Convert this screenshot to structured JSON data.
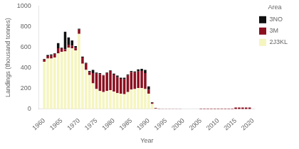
{
  "chart_data": {
    "type": "bar",
    "stacked": true,
    "xlabel": "Year",
    "ylabel": "Landings (thousand tonnes)",
    "legend_title": "Area",
    "x": [
      1960,
      1961,
      1962,
      1963,
      1964,
      1965,
      1966,
      1967,
      1968,
      1969,
      1970,
      1971,
      1972,
      1973,
      1974,
      1975,
      1976,
      1977,
      1978,
      1979,
      1980,
      1981,
      1982,
      1983,
      1984,
      1985,
      1986,
      1987,
      1988,
      1989,
      1990,
      1991,
      1992,
      1993,
      1994,
      1995,
      1996,
      1997,
      1998,
      1999,
      2000,
      2001,
      2002,
      2003,
      2004,
      2005,
      2006,
      2007,
      2008,
      2009,
      2010,
      2011,
      2012,
      2013,
      2014,
      2015,
      2016,
      2017,
      2018,
      2019
    ],
    "series": [
      {
        "name": "2J3KL",
        "color": "#f5f5c0",
        "values": [
          460,
          490,
          490,
          500,
          540,
          555,
          560,
          595,
          590,
          570,
          730,
          440,
          380,
          330,
          250,
          195,
          175,
          165,
          175,
          185,
          170,
          155,
          150,
          145,
          165,
          190,
          195,
          205,
          205,
          195,
          150,
          50,
          5,
          2,
          1,
          1,
          1,
          1,
          1,
          1,
          1,
          1,
          1,
          1,
          1,
          1,
          1,
          1,
          1,
          1,
          1,
          1,
          1,
          1,
          1,
          1,
          1,
          1,
          1,
          1
        ]
      },
      {
        "name": "3M",
        "color": "#8b1020",
        "values": [
          20,
          25,
          30,
          35,
          50,
          35,
          20,
          30,
          25,
          25,
          40,
          60,
          60,
          30,
          100,
          150,
          165,
          160,
          175,
          185,
          165,
          155,
          145,
          145,
          160,
          170,
          160,
          160,
          165,
          155,
          40,
          10,
          5,
          2,
          1,
          1,
          1,
          1,
          1,
          1,
          0,
          0,
          0,
          0,
          0,
          5,
          5,
          5,
          5,
          5,
          5,
          5,
          5,
          5,
          5,
          15,
          15,
          15,
          15,
          15
        ]
      },
      {
        "name": "3NO",
        "color": "#111111",
        "values": [
          5,
          10,
          10,
          5,
          50,
          5,
          170,
          70,
          50,
          15,
          10,
          10,
          10,
          10,
          30,
          10,
          10,
          5,
          5,
          5,
          10,
          15,
          10,
          15,
          10,
          10,
          10,
          20,
          20,
          30,
          30,
          5,
          2,
          2,
          1,
          1,
          1,
          1,
          1,
          1,
          0,
          0,
          0,
          0,
          0,
          0,
          0,
          0,
          0,
          0,
          0,
          0,
          0,
          0,
          0,
          0,
          0,
          0,
          0,
          0
        ]
      }
    ],
    "xlim": [
      1958.5,
      2020.5
    ],
    "xticks": [
      1960,
      1965,
      1970,
      1975,
      1980,
      1985,
      1990,
      1995,
      2000,
      2005,
      2010,
      2015,
      2020
    ],
    "ylim": [
      0,
      1000
    ],
    "yticks": [
      0,
      200,
      400,
      600,
      800,
      1000
    ],
    "grid": false,
    "legend": "right"
  }
}
